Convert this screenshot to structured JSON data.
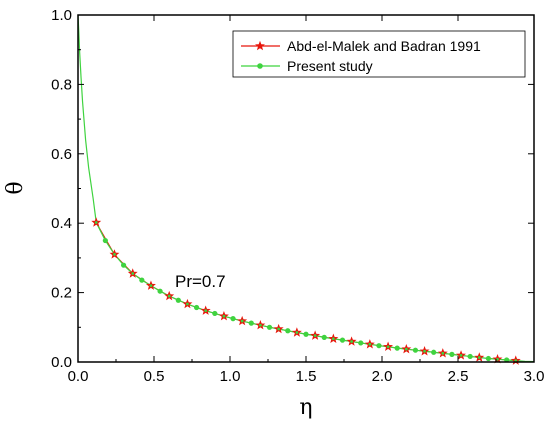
{
  "chart_data": {
    "type": "line",
    "xlabel": "η",
    "ylabel": "θ",
    "xlim": [
      0.0,
      3.0
    ],
    "ylim": [
      0.0,
      1.0
    ],
    "xticks": [
      "0.0",
      "0.5",
      "1.0",
      "1.5",
      "2.0",
      "2.5",
      "3.0"
    ],
    "yticks": [
      "0.0",
      "0.2",
      "0.4",
      "0.6",
      "0.8",
      "1.0"
    ],
    "grid": false,
    "legend_position": "top-right",
    "annotation": "Pr=0.7",
    "series": [
      {
        "name": "Abd-el-Malek and Badran 1991",
        "color": "#e8160c",
        "marker": "star",
        "x": [
          0.12,
          0.24,
          0.36,
          0.48,
          0.6,
          0.72,
          0.84,
          0.96,
          1.08,
          1.2,
          1.32,
          1.44,
          1.56,
          1.68,
          1.8,
          1.92,
          2.04,
          2.16,
          2.28,
          2.4,
          2.52,
          2.64,
          2.76,
          2.88
        ],
        "y": [
          0.402,
          0.31,
          0.255,
          0.22,
          0.19,
          0.167,
          0.148,
          0.132,
          0.118,
          0.106,
          0.095,
          0.085,
          0.076,
          0.067,
          0.059,
          0.051,
          0.044,
          0.037,
          0.031,
          0.025,
          0.019,
          0.013,
          0.008,
          0.004
        ]
      },
      {
        "name": "Present study",
        "color": "#3fd33f",
        "marker": "circle",
        "x": [
          0.0,
          0.005,
          0.01,
          0.02,
          0.03,
          0.05,
          0.07,
          0.1,
          0.12,
          0.18,
          0.24,
          0.3,
          0.36,
          0.42,
          0.48,
          0.54,
          0.6,
          0.66,
          0.72,
          0.78,
          0.84,
          0.9,
          0.96,
          1.02,
          1.08,
          1.14,
          1.2,
          1.26,
          1.32,
          1.38,
          1.44,
          1.5,
          1.56,
          1.62,
          1.68,
          1.74,
          1.8,
          1.86,
          1.92,
          1.98,
          2.04,
          2.1,
          2.16,
          2.22,
          2.28,
          2.34,
          2.4,
          2.46,
          2.52,
          2.58,
          2.64,
          2.7,
          2.76,
          2.82,
          2.88,
          2.94,
          3.0
        ],
        "y": [
          1.0,
          0.955,
          0.9,
          0.82,
          0.75,
          0.64,
          0.56,
          0.47,
          0.402,
          0.35,
          0.31,
          0.279,
          0.255,
          0.236,
          0.22,
          0.204,
          0.19,
          0.178,
          0.167,
          0.157,
          0.148,
          0.14,
          0.132,
          0.125,
          0.118,
          0.112,
          0.106,
          0.1,
          0.095,
          0.09,
          0.085,
          0.08,
          0.076,
          0.071,
          0.067,
          0.063,
          0.059,
          0.055,
          0.051,
          0.047,
          0.044,
          0.04,
          0.037,
          0.034,
          0.031,
          0.028,
          0.025,
          0.022,
          0.019,
          0.016,
          0.013,
          0.01,
          0.008,
          0.006,
          0.004,
          0.002,
          0.001
        ],
        "marker_x": [
          0.18,
          0.3,
          0.42,
          0.54,
          0.66,
          0.78,
          0.9,
          1.02,
          1.14,
          1.26,
          1.38,
          1.5,
          1.62,
          1.74,
          1.86,
          1.98,
          2.1,
          2.22,
          2.34,
          2.46,
          2.58,
          2.7,
          2.82
        ],
        "marker_y": [
          0.35,
          0.279,
          0.236,
          0.204,
          0.178,
          0.157,
          0.14,
          0.125,
          0.112,
          0.1,
          0.09,
          0.08,
          0.071,
          0.063,
          0.055,
          0.047,
          0.04,
          0.034,
          0.028,
          0.022,
          0.016,
          0.01,
          0.006
        ]
      }
    ]
  }
}
